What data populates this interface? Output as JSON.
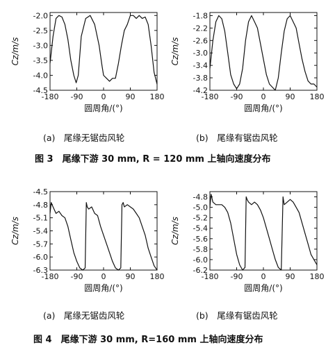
{
  "fig3": {
    "caption": "图 3　尾缘下游 30 mm, R = 120 mm 上轴向速度分布",
    "sub_a": "(a)　尾缘无锯齿风轮",
    "sub_b": "(b)　尾缘有锯齿风轮"
  },
  "fig4": {
    "caption": "图 4　尾缘下游 30 mm, R=160 mm 上轴向速度分布",
    "sub_a": "(a)　尾缘无锯齿风轮",
    "sub_b": "(b)　尾缘有锯齿风轮"
  },
  "chart_data": [
    {
      "id": "fig3a",
      "type": "line",
      "xlabel": "圆周角/(°)",
      "ylabel": "Cz/m/s",
      "xlim": [
        -180,
        180
      ],
      "ylim": [
        -4.5,
        -1.9
      ],
      "y_inverted": true,
      "xticks": [
        -180,
        -90,
        0,
        90,
        180
      ],
      "yticks": [
        -2.0,
        -2.5,
        -3.0,
        -3.5,
        -4.0,
        -4.5
      ],
      "ytick_labels": [
        "-2.0",
        "-2.5",
        "-3.0",
        "-3.5",
        "-4.0",
        "-4.5"
      ],
      "x": [
        -180,
        -170,
        -160,
        -150,
        -140,
        -130,
        -120,
        -110,
        -100,
        -92,
        -85,
        -75,
        -60,
        -45,
        -30,
        -15,
        -5,
        0,
        10,
        20,
        30,
        40,
        50,
        60,
        70,
        80,
        90,
        100,
        110,
        120,
        130,
        140,
        150,
        160,
        170,
        180
      ],
      "y": [
        -3.6,
        -2.7,
        -2.1,
        -2.0,
        -2.05,
        -2.3,
        -2.8,
        -3.5,
        -4.0,
        -4.25,
        -4.0,
        -2.7,
        -2.1,
        -2.0,
        -2.3,
        -3.0,
        -3.7,
        -4.0,
        -4.1,
        -4.2,
        -4.1,
        -4.1,
        -3.6,
        -3.0,
        -2.5,
        -2.3,
        -2.0,
        -2.0,
        -2.1,
        -2.0,
        -2.1,
        -2.05,
        -2.3,
        -3.0,
        -3.9,
        -4.3
      ]
    },
    {
      "id": "fig3b",
      "type": "line",
      "xlabel": "圆周角/(°)",
      "ylabel": "Cz/m/s",
      "xlim": [
        -180,
        180
      ],
      "ylim": [
        -4.2,
        -1.7
      ],
      "y_inverted": true,
      "xticks": [
        -180,
        -90,
        0,
        90,
        180
      ],
      "yticks": [
        -1.8,
        -2.2,
        -2.6,
        -3.0,
        -3.4,
        -3.8,
        -4.2
      ],
      "ytick_labels": [
        "-1.8",
        "-2.2",
        "-2.6",
        "-3.0",
        "-3.4",
        "-3.8",
        "-4.2"
      ],
      "x": [
        -180,
        -170,
        -160,
        -150,
        -140,
        -130,
        -120,
        -110,
        -100,
        -90,
        -80,
        -70,
        -60,
        -50,
        -40,
        -30,
        -20,
        -10,
        0,
        10,
        20,
        30,
        40,
        50,
        60,
        70,
        80,
        90,
        100,
        110,
        120,
        130,
        140,
        150,
        160,
        170,
        180
      ],
      "y": [
        -3.5,
        -2.6,
        -2.0,
        -1.8,
        -1.9,
        -2.3,
        -3.0,
        -3.7,
        -4.0,
        -4.15,
        -4.0,
        -3.5,
        -2.6,
        -2.0,
        -1.8,
        -2.0,
        -2.2,
        -2.7,
        -3.2,
        -3.7,
        -4.0,
        -4.1,
        -4.2,
        -3.8,
        -3.0,
        -2.3,
        -1.9,
        -1.8,
        -2.0,
        -2.2,
        -2.7,
        -3.2,
        -3.6,
        -3.9,
        -4.0,
        -4.0,
        -4.1
      ]
    },
    {
      "id": "fig4a",
      "type": "line",
      "xlabel": "圆周角/(°)",
      "ylabel": "Cz/m/s",
      "xlim": [
        -180,
        180
      ],
      "ylim": [
        -6.3,
        -4.5
      ],
      "y_inverted": true,
      "xticks": [
        -180,
        -90,
        0,
        90,
        180
      ],
      "yticks": [
        -4.5,
        -4.8,
        -5.1,
        -5.4,
        -5.7,
        -6.0,
        -6.3
      ],
      "ytick_labels": [
        "-4.5",
        "-4.8",
        "-5.1",
        "-5.4",
        "-5.7",
        "-6.0",
        "-6.3"
      ],
      "x": [
        -180,
        -176,
        -170,
        -160,
        -150,
        -140,
        -130,
        -120,
        -110,
        -100,
        -90,
        -80,
        -70,
        -62,
        -58,
        -55,
        -50,
        -40,
        -30,
        -20,
        -10,
        0,
        10,
        20,
        30,
        40,
        50,
        58,
        62,
        66,
        70,
        80,
        90,
        100,
        110,
        120,
        130,
        140,
        150,
        160,
        170,
        180
      ],
      "y": [
        -5.0,
        -4.75,
        -4.85,
        -5.0,
        -4.95,
        -5.05,
        -5.1,
        -5.3,
        -5.6,
        -5.9,
        -6.1,
        -6.25,
        -6.3,
        -6.25,
        -4.75,
        -4.85,
        -4.9,
        -4.85,
        -5.0,
        -5.05,
        -5.3,
        -5.5,
        -5.7,
        -5.9,
        -6.1,
        -6.25,
        -6.3,
        -6.25,
        -4.8,
        -4.75,
        -4.85,
        -4.8,
        -4.85,
        -4.9,
        -5.0,
        -5.1,
        -5.3,
        -5.5,
        -5.8,
        -6.0,
        -6.2,
        -6.3
      ]
    },
    {
      "id": "fig4b",
      "type": "line",
      "xlabel": "圆周角/(°)",
      "ylabel": "Cz/m/s",
      "xlim": [
        -180,
        180
      ],
      "ylim": [
        -6.2,
        -4.7
      ],
      "y_inverted": true,
      "xticks": [
        -180,
        -90,
        0,
        90,
        180
      ],
      "yticks": [
        -4.8,
        -5.0,
        -5.2,
        -5.4,
        -5.6,
        -5.8,
        -6.0,
        -6.2
      ],
      "ytick_labels": [
        "-4.8",
        "-5.0",
        "-5.2",
        "-5.4",
        "-5.6",
        "-5.8",
        "-6.0",
        "-6.2"
      ],
      "x": [
        -180,
        -176,
        -170,
        -160,
        -150,
        -140,
        -130,
        -120,
        -110,
        -100,
        -90,
        -80,
        -70,
        -62,
        -58,
        -55,
        -50,
        -40,
        -30,
        -20,
        -10,
        0,
        10,
        20,
        30,
        40,
        50,
        60,
        66,
        70,
        80,
        90,
        100,
        110,
        120,
        130,
        140,
        150,
        160,
        170,
        180
      ],
      "y": [
        -5.0,
        -4.75,
        -4.9,
        -4.95,
        -4.95,
        -4.95,
        -5.0,
        -5.1,
        -5.3,
        -5.6,
        -5.9,
        -6.1,
        -6.2,
        -6.15,
        -4.8,
        -4.85,
        -4.9,
        -4.95,
        -4.9,
        -4.95,
        -5.05,
        -5.2,
        -5.4,
        -5.6,
        -5.8,
        -6.0,
        -6.15,
        -6.2,
        -4.8,
        -4.95,
        -4.9,
        -4.85,
        -4.9,
        -5.0,
        -5.1,
        -5.3,
        -5.5,
        -5.7,
        -5.9,
        -6.0,
        -6.1
      ]
    }
  ]
}
